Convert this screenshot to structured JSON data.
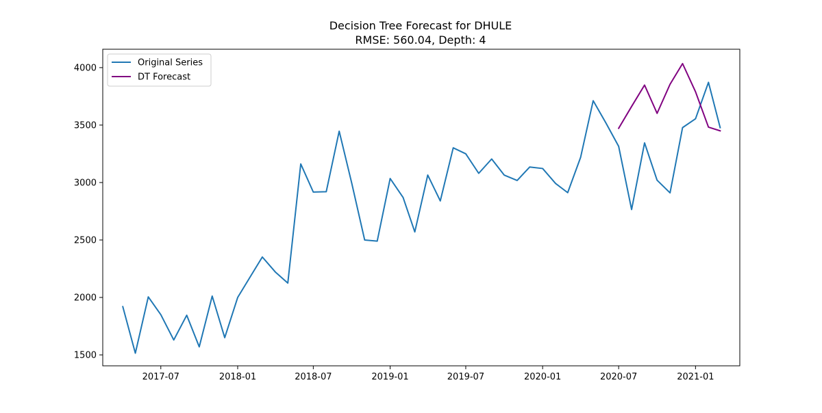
{
  "chart_data": {
    "type": "line",
    "title": "Decision Tree Forecast for DHULE",
    "subtitle": "RMSE: 560.04, Depth: 4",
    "xlabel": "",
    "ylabel": "",
    "x_type": "date",
    "xlim": [
      "2017-02-12",
      "2021-04-17"
    ],
    "ylim": [
      1405,
      4160
    ],
    "x_ticks": [
      "2017-07-01",
      "2018-01-01",
      "2018-07-01",
      "2019-01-01",
      "2019-07-01",
      "2020-01-01",
      "2020-07-01",
      "2021-01-01"
    ],
    "x_tick_labels": [
      "2017-07",
      "2018-01",
      "2018-07",
      "2019-01",
      "2019-07",
      "2020-01",
      "2020-07",
      "2021-01"
    ],
    "y_ticks": [
      1500,
      2000,
      2500,
      3000,
      3500,
      4000
    ],
    "y_tick_labels": [
      "1500",
      "2000",
      "2500",
      "3000",
      "3500",
      "4000"
    ],
    "grid": false,
    "legend_position": "top-left",
    "series": [
      {
        "name": "Original Series",
        "color": "#1f77b4",
        "points": [
          [
            "2017-04-01",
            1920
          ],
          [
            "2017-05-01",
            1515
          ],
          [
            "2017-06-01",
            2005
          ],
          [
            "2017-07-01",
            1850
          ],
          [
            "2017-08-01",
            1630
          ],
          [
            "2017-09-01",
            1845
          ],
          [
            "2017-10-01",
            1570
          ],
          [
            "2017-11-01",
            2012
          ],
          [
            "2017-12-01",
            1650
          ],
          [
            "2018-01-01",
            2000
          ],
          [
            "2018-02-01",
            2185
          ],
          [
            "2018-03-01",
            2352
          ],
          [
            "2018-04-01",
            2222
          ],
          [
            "2018-05-01",
            2125
          ],
          [
            "2018-06-01",
            3162
          ],
          [
            "2018-07-01",
            2917
          ],
          [
            "2018-08-01",
            2920
          ],
          [
            "2018-09-01",
            3447
          ],
          [
            "2018-10-01",
            2995
          ],
          [
            "2018-11-01",
            2500
          ],
          [
            "2018-12-01",
            2490
          ],
          [
            "2019-01-01",
            3035
          ],
          [
            "2019-02-01",
            2870
          ],
          [
            "2019-03-01",
            2570
          ],
          [
            "2019-04-01",
            3065
          ],
          [
            "2019-05-01",
            2840
          ],
          [
            "2019-06-01",
            3302
          ],
          [
            "2019-07-01",
            3250
          ],
          [
            "2019-08-01",
            3080
          ],
          [
            "2019-09-01",
            3205
          ],
          [
            "2019-10-01",
            3065
          ],
          [
            "2019-11-01",
            3018
          ],
          [
            "2019-12-01",
            3135
          ],
          [
            "2020-01-01",
            3122
          ],
          [
            "2020-02-01",
            2992
          ],
          [
            "2020-03-01",
            2912
          ],
          [
            "2020-04-01",
            3220
          ],
          [
            "2020-05-01",
            3712
          ],
          [
            "2020-06-01",
            3515
          ],
          [
            "2020-07-01",
            3315
          ],
          [
            "2020-08-01",
            2765
          ],
          [
            "2020-09-01",
            3345
          ],
          [
            "2020-10-01",
            3020
          ],
          [
            "2020-11-01",
            2910
          ],
          [
            "2020-12-01",
            3478
          ],
          [
            "2021-01-01",
            3555
          ],
          [
            "2021-02-01",
            3872
          ],
          [
            "2021-03-01",
            3478
          ]
        ]
      },
      {
        "name": "DT Forecast",
        "color": "#800080",
        "points": [
          [
            "2020-07-01",
            3472
          ],
          [
            "2020-08-01",
            3662
          ],
          [
            "2020-09-01",
            3848
          ],
          [
            "2020-10-01",
            3602
          ],
          [
            "2020-11-01",
            3855
          ],
          [
            "2020-12-01",
            4035
          ],
          [
            "2021-01-01",
            3790
          ],
          [
            "2021-02-01",
            3482
          ],
          [
            "2021-03-01",
            3450
          ]
        ]
      }
    ]
  }
}
